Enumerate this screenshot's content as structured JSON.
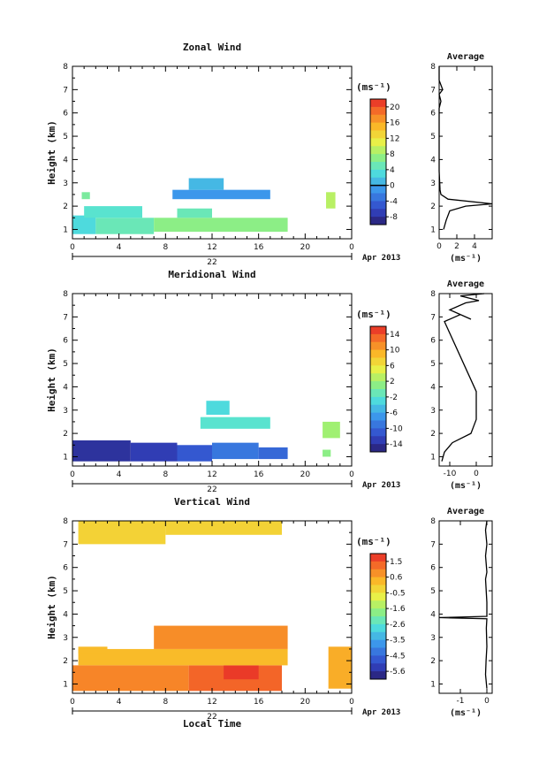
{
  "figure": {
    "x_axis_title": "Local Time",
    "date_text": "Apr 2013",
    "day_label": "22",
    "x_ticks": [
      "0",
      "4",
      "8",
      "12",
      "16",
      "20",
      "0"
    ]
  },
  "chart_data": [
    {
      "type": "heatmap",
      "title": "Zonal Wind",
      "ylabel": "Height (km)",
      "xlim": [
        0,
        24
      ],
      "ylim": [
        0.6,
        8
      ],
      "y_ticks": [
        "1",
        "2",
        "3",
        "4",
        "5",
        "6",
        "7",
        "8"
      ],
      "colorbar": {
        "unit": "(ms⁻¹)",
        "ticks": [
          "20",
          "16",
          "12",
          "8",
          "4",
          "0",
          "-4",
          "-8"
        ],
        "range": [
          -10,
          22
        ],
        "contour_at": 0
      },
      "cells": [
        {
          "x0": 0.0,
          "x1": 2.0,
          "y0": 0.8,
          "y1": 1.6,
          "v": 3.0
        },
        {
          "x0": 2.0,
          "x1": 7.0,
          "y0": 0.8,
          "y1": 1.5,
          "v": 5.0
        },
        {
          "x0": 7.0,
          "x1": 18.5,
          "y0": 0.9,
          "y1": 1.5,
          "v": 7.0
        },
        {
          "x0": 1.0,
          "x1": 6.0,
          "y0": 1.5,
          "y1": 2.0,
          "v": 4.0
        },
        {
          "x0": 9.0,
          "x1": 12.0,
          "y0": 1.5,
          "y1": 1.9,
          "v": 5.0
        },
        {
          "x0": 0.8,
          "x1": 1.5,
          "y0": 2.3,
          "y1": 2.6,
          "v": 6.0
        },
        {
          "x0": 8.6,
          "x1": 17.0,
          "y0": 2.3,
          "y1": 2.7,
          "v": -1.0
        },
        {
          "x0": 10.0,
          "x1": 13.0,
          "y0": 2.7,
          "y1": 3.2,
          "v": 1.0
        },
        {
          "x0": 21.8,
          "x1": 22.6,
          "y0": 1.9,
          "y1": 2.6,
          "v": 9.0
        }
      ],
      "average_profile": {
        "title": "Average",
        "xlabel": "(ms⁻¹)",
        "xlim": [
          0,
          6
        ],
        "x_ticks": [
          "0",
          "2",
          "4"
        ],
        "points": [
          [
            0.5,
            1.0
          ],
          [
            0.8,
            1.4
          ],
          [
            1.2,
            1.8
          ],
          [
            3.0,
            2.0
          ],
          [
            6.0,
            2.1
          ],
          [
            1.0,
            2.3
          ],
          [
            0.2,
            2.5
          ],
          [
            0.1,
            2.7
          ],
          [
            0.0,
            3.5
          ],
          [
            0.0,
            6.2
          ],
          [
            0.2,
            6.5
          ],
          [
            0.0,
            6.8
          ],
          [
            0.4,
            7.0
          ],
          [
            0.0,
            7.4
          ],
          [
            0.0,
            8.0
          ]
        ]
      }
    },
    {
      "type": "heatmap",
      "title": "Meridional Wind",
      "ylabel": "Height (km)",
      "xlim": [
        0,
        24
      ],
      "ylim": [
        0.6,
        8
      ],
      "y_ticks": [
        "1",
        "2",
        "3",
        "4",
        "5",
        "6",
        "7",
        "8"
      ],
      "colorbar": {
        "unit": "(ms⁻¹)",
        "ticks": [
          "14",
          "10",
          "6",
          "2",
          "-2",
          "-6",
          "-10",
          "-14"
        ],
        "range": [
          -15,
          17
        ],
        "contour_at": 0
      },
      "cells": [
        {
          "x0": 0.0,
          "x1": 5.0,
          "y0": 0.8,
          "y1": 1.7,
          "v": -13.0
        },
        {
          "x0": 5.0,
          "x1": 9.0,
          "y0": 0.8,
          "y1": 1.6,
          "v": -12.0
        },
        {
          "x0": 9.0,
          "x1": 12.0,
          "y0": 0.8,
          "y1": 1.5,
          "v": -10.0
        },
        {
          "x0": 12.0,
          "x1": 16.0,
          "y0": 0.9,
          "y1": 1.6,
          "v": -8.0
        },
        {
          "x0": 16.0,
          "x1": 18.5,
          "y0": 0.9,
          "y1": 1.4,
          "v": -9.0
        },
        {
          "x0": 11.0,
          "x1": 17.0,
          "y0": 2.2,
          "y1": 2.7,
          "v": -1.0
        },
        {
          "x0": 11.5,
          "x1": 13.5,
          "y0": 2.8,
          "y1": 3.4,
          "v": -2.0
        },
        {
          "x0": 21.5,
          "x1": 23.0,
          "y0": 1.8,
          "y1": 2.5,
          "v": 3.0
        },
        {
          "x0": 21.5,
          "x1": 22.2,
          "y0": 1.0,
          "y1": 1.3,
          "v": 2.0
        }
      ],
      "average_profile": {
        "title": "Average",
        "xlabel": "(ms⁻¹)",
        "xlim": [
          -14,
          6
        ],
        "x_ticks": [
          "-10",
          "0"
        ],
        "points": [
          [
            -13,
            0.8
          ],
          [
            -12,
            1.2
          ],
          [
            -9,
            1.6
          ],
          [
            -2,
            2.0
          ],
          [
            -1,
            2.3
          ],
          [
            0,
            2.6
          ],
          [
            0,
            3.0
          ],
          [
            0,
            3.8
          ],
          [
            -12,
            6.8
          ],
          [
            -6,
            7.1
          ],
          [
            -2,
            6.9
          ],
          [
            -10,
            7.3
          ],
          [
            -4,
            7.6
          ],
          [
            1,
            7.7
          ],
          [
            -6,
            7.9
          ],
          [
            3,
            8.0
          ]
        ]
      }
    },
    {
      "type": "heatmap",
      "title": "Vertical Wind",
      "ylabel": "Height (km)",
      "xlim": [
        0,
        24
      ],
      "ylim": [
        0.6,
        8
      ],
      "y_ticks": [
        "1",
        "2",
        "3",
        "4",
        "5",
        "6",
        "7",
        "8"
      ],
      "colorbar": {
        "unit": "(ms⁻¹)",
        "ticks": [
          "1.5",
          "0.6",
          "-0.5",
          "-1.6",
          "-2.6",
          "-3.5",
          "-4.5",
          "-5.6"
        ],
        "range": [
          -6.0,
          2.0
        ],
        "contour_at": null
      },
      "cells": [
        {
          "x0": 0.0,
          "x1": 10.0,
          "y0": 0.7,
          "y1": 1.8,
          "v": 0.9
        },
        {
          "x0": 10.0,
          "x1": 18.0,
          "y0": 0.7,
          "y1": 1.8,
          "v": 1.3
        },
        {
          "x0": 13.0,
          "x1": 16.0,
          "y0": 1.2,
          "y1": 1.8,
          "v": 1.8
        },
        {
          "x0": 0.5,
          "x1": 18.5,
          "y0": 1.8,
          "y1": 2.5,
          "v": 0.2
        },
        {
          "x0": 7.0,
          "x1": 18.5,
          "y0": 2.5,
          "y1": 3.5,
          "v": 0.8
        },
        {
          "x0": 0.5,
          "x1": 3.0,
          "y0": 2.3,
          "y1": 2.6,
          "v": 0.2
        },
        {
          "x0": 22.0,
          "x1": 24.0,
          "y0": 0.8,
          "y1": 2.6,
          "v": 0.4
        },
        {
          "x0": 0.5,
          "x1": 8.0,
          "y0": 7.0,
          "y1": 8.0,
          "v": -0.2
        },
        {
          "x0": 8.0,
          "x1": 18.0,
          "y0": 7.4,
          "y1": 8.0,
          "v": -0.2
        }
      ],
      "average_profile": {
        "title": "Average",
        "xlabel": "(ms⁻¹)",
        "xlim": [
          -1.8,
          0.2
        ],
        "x_ticks": [
          "-1",
          "0"
        ],
        "points": [
          [
            0.0,
            0.8
          ],
          [
            -0.05,
            1.4
          ],
          [
            -0.03,
            2.0
          ],
          [
            0.0,
            2.6
          ],
          [
            -0.02,
            3.4
          ],
          [
            0.0,
            3.8
          ],
          [
            -1.8,
            3.85
          ],
          [
            0.0,
            3.9
          ],
          [
            0.0,
            4.5
          ],
          [
            -0.05,
            5.5
          ],
          [
            0.0,
            5.8
          ],
          [
            -0.05,
            6.5
          ],
          [
            0.0,
            7.0
          ],
          [
            -0.05,
            7.6
          ],
          [
            0.0,
            8.0
          ]
        ]
      }
    }
  ]
}
